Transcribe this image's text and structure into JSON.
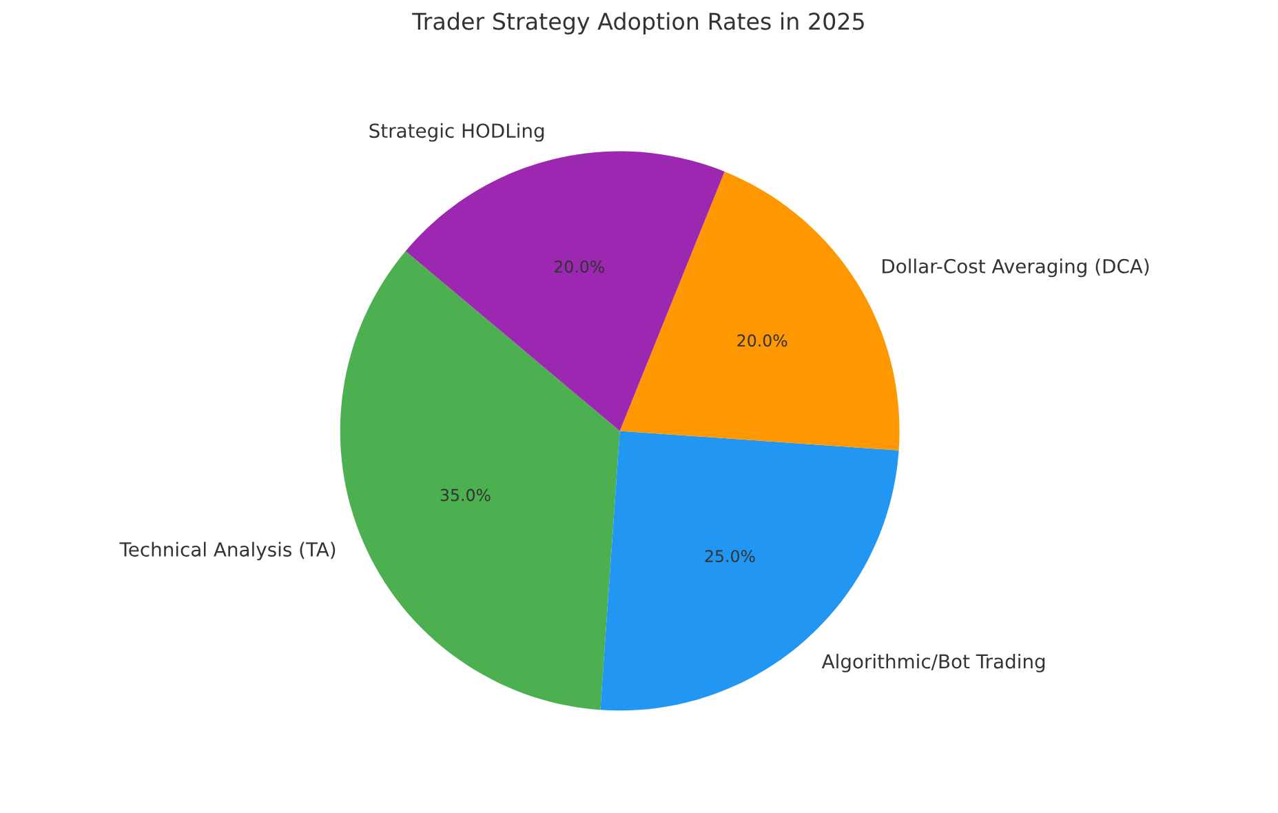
{
  "chart_data": {
    "type": "pie",
    "title": "Trader Strategy Adoption Rates in 2025",
    "categories": [
      "Technical Analysis (TA)",
      "Algorithmic/Bot Trading",
      "Dollar-Cost Averaging (DCA)",
      "Strategic HODLing"
    ],
    "values": [
      35,
      25,
      20,
      20
    ],
    "colors": [
      "#4caf50",
      "#2196f3",
      "#ff9800",
      "#9c27b0"
    ],
    "value_labels": [
      "35.0%",
      "25.0%",
      "20.0%",
      "20.0%"
    ],
    "legend": false
  }
}
